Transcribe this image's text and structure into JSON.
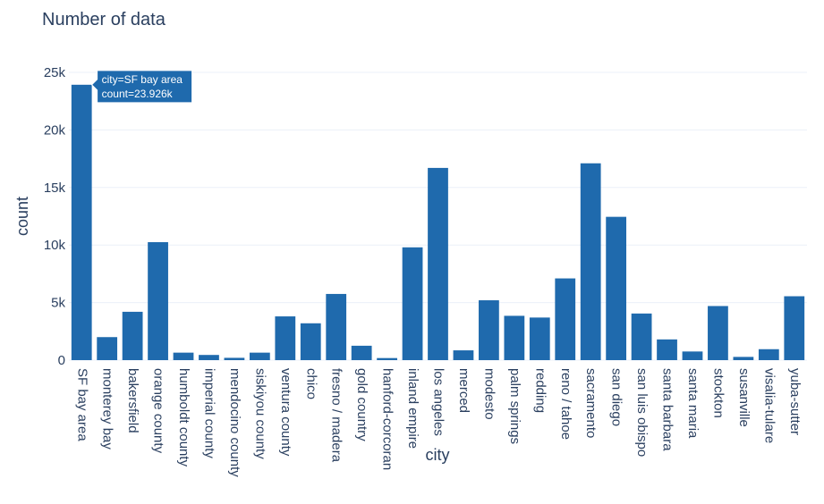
{
  "chart_data": {
    "type": "bar",
    "title": "Number of data",
    "xlabel": "city",
    "ylabel": "count",
    "ylim": [
      0,
      25000
    ],
    "yticks": [
      0,
      5000,
      10000,
      15000,
      20000,
      25000
    ],
    "ytick_labels": [
      "0",
      "5k",
      "10k",
      "15k",
      "20k",
      "25k"
    ],
    "grid": true,
    "bar_color": "#1f6aad",
    "categories": [
      "SF bay area",
      "monterey bay",
      "bakersfield",
      "orange county",
      "humboldt county",
      "imperial county",
      "mendocino county",
      "siskiyou county",
      "ventura county",
      "chico",
      "fresno / madera",
      "gold country",
      "hanford-corcoran",
      "inland empire",
      "los angeles",
      "merced",
      "modesto",
      "palm springs",
      "redding",
      "reno / tahoe",
      "sacramento",
      "san diego",
      "san luis obispo",
      "santa barbara",
      "santa maria",
      "stockton",
      "susanville",
      "visalia-tulare",
      "yuba-sutter"
    ],
    "values": [
      23926,
      2000,
      4200,
      10250,
      650,
      450,
      200,
      650,
      3800,
      3200,
      5750,
      1250,
      180,
      9800,
      16700,
      850,
      5200,
      3850,
      3700,
      7100,
      17100,
      12450,
      4050,
      1800,
      750,
      4700,
      280,
      950,
      5550
    ],
    "hover": {
      "line1": "city=SF bay area",
      "line2": "count=23.926k"
    }
  }
}
